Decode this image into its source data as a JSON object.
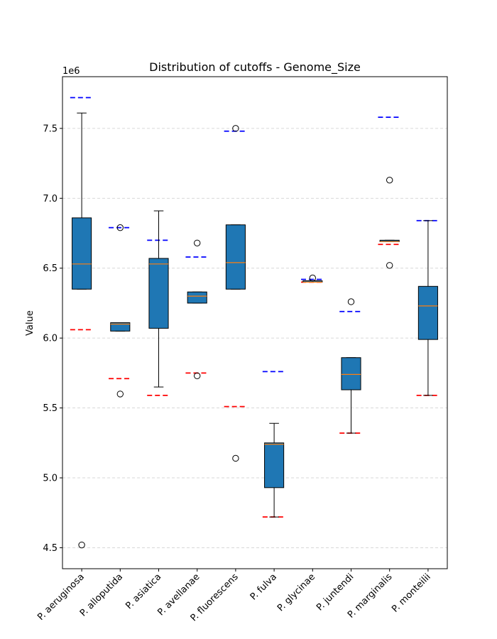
{
  "chart_data": {
    "type": "box",
    "title": "Distribution of cutoffs - Genome_Size",
    "xlabel": "",
    "ylabel": "Value",
    "y_offset_label": "1e6",
    "y_scale": 1000000,
    "ylim": [
      4.35,
      7.87
    ],
    "yticks": [
      4.5,
      5.0,
      5.5,
      6.0,
      6.5,
      7.0,
      7.5
    ],
    "ytick_labels": [
      "4.5",
      "5.0",
      "5.5",
      "6.0",
      "6.5",
      "7.0",
      "7.5"
    ],
    "grid": "y",
    "colors": {
      "box_fill": "#1f77b4",
      "median": "#ff7f0e",
      "upper_cutoff": "#0000ff",
      "lower_cutoff": "#ff0000",
      "grid": "#cccccc"
    },
    "categories": [
      "P. aeruginosa",
      "P. alloputida",
      "P. asiatica",
      "P. avellanae",
      "P. fluorescens",
      "P. fulva",
      "P. glycinae",
      "P. juntendi",
      "P. marginalis",
      "P. monteilii"
    ],
    "boxes": [
      {
        "whislo": 6.35,
        "q1": 6.35,
        "med": 6.53,
        "q3": 6.86,
        "whishi": 7.61,
        "fliers": [
          4.52
        ],
        "upper_cutoff": 7.72,
        "lower_cutoff": 6.06
      },
      {
        "whislo": 6.05,
        "q1": 6.05,
        "med": 6.1,
        "q3": 6.11,
        "whishi": 6.11,
        "fliers": [
          6.79,
          5.6
        ],
        "upper_cutoff": 6.79,
        "lower_cutoff": 5.71
      },
      {
        "whislo": 5.65,
        "q1": 6.07,
        "med": 6.53,
        "q3": 6.57,
        "whishi": 6.91,
        "fliers": [],
        "upper_cutoff": 6.7,
        "lower_cutoff": 5.59
      },
      {
        "whislo": 6.25,
        "q1": 6.25,
        "med": 6.3,
        "q3": 6.33,
        "whishi": 6.33,
        "fliers": [
          6.68,
          5.73
        ],
        "upper_cutoff": 6.58,
        "lower_cutoff": 5.75
      },
      {
        "whislo": 6.35,
        "q1": 6.35,
        "med": 6.54,
        "q3": 6.81,
        "whishi": 6.81,
        "fliers": [
          7.5,
          5.14
        ],
        "upper_cutoff": 7.48,
        "lower_cutoff": 5.51
      },
      {
        "whislo": 4.72,
        "q1": 4.93,
        "med": 5.24,
        "q3": 5.25,
        "whishi": 5.39,
        "fliers": [],
        "upper_cutoff": 5.76,
        "lower_cutoff": 4.72
      },
      {
        "whislo": 6.4,
        "q1": 6.4,
        "med": 6.4,
        "q3": 6.41,
        "whishi": 6.41,
        "fliers": [
          6.43
        ],
        "upper_cutoff": 6.42,
        "lower_cutoff": 6.4
      },
      {
        "whislo": 5.32,
        "q1": 5.63,
        "med": 5.74,
        "q3": 5.86,
        "whishi": 5.86,
        "fliers": [
          6.26
        ],
        "upper_cutoff": 6.19,
        "lower_cutoff": 5.32
      },
      {
        "whislo": 6.69,
        "q1": 6.69,
        "med": 6.69,
        "q3": 6.7,
        "whishi": 6.7,
        "fliers": [
          7.13,
          6.52
        ],
        "upper_cutoff": 7.58,
        "lower_cutoff": 6.67
      },
      {
        "whislo": 5.59,
        "q1": 5.99,
        "med": 6.23,
        "q3": 6.37,
        "whishi": 6.84,
        "fliers": [],
        "upper_cutoff": 6.84,
        "lower_cutoff": 5.59
      }
    ]
  }
}
